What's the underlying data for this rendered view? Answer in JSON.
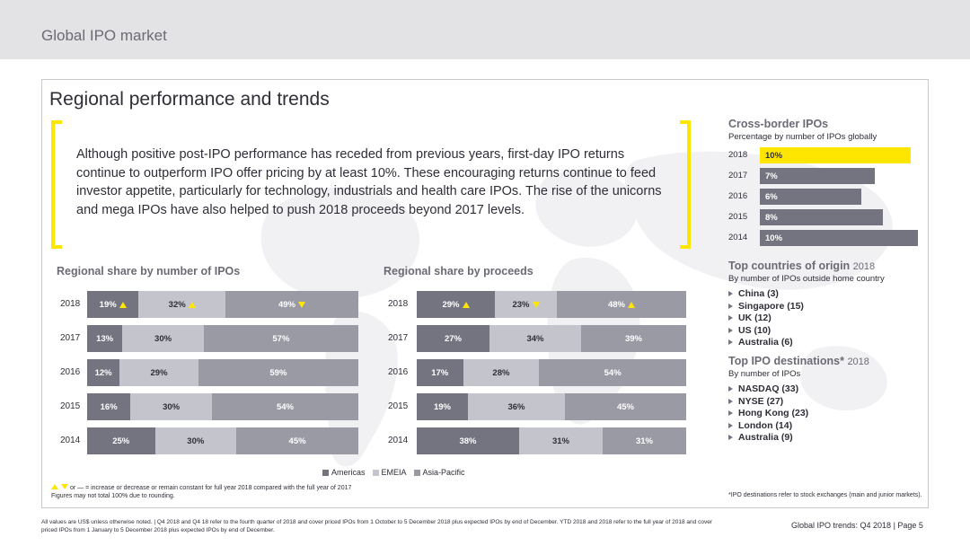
{
  "header": {
    "title": "Global IPO market"
  },
  "heading": "Regional performance and trends",
  "quote": "Although positive post-IPO performance has receded from previous years, first-day IPO returns continue to outperform IPO offer pricing by at least 10%. These encouraging returns continue to feed investor appetite, particularly for technology, industrials and health care IPOs. The rise of the unicorns and mega IPOs have also helped to push 2018 proceeds beyond 2017 levels.",
  "colors": {
    "accent": "#ffe600",
    "americas": "#747480",
    "emeia": "#c4c4cd",
    "asia_pacific": "#9a9aa5"
  },
  "chart_data": [
    {
      "type": "bar",
      "stacked": true,
      "orientation": "horizontal",
      "title": "Regional share by number of IPOs",
      "categories": [
        "2018",
        "2017",
        "2016",
        "2015",
        "2014"
      ],
      "series": [
        {
          "name": "Americas",
          "values": [
            19,
            13,
            12,
            16,
            25
          ],
          "labels": [
            "19%",
            "13%",
            "12%",
            "16%",
            "25%"
          ],
          "markers": [
            "up",
            "",
            "",
            "",
            ""
          ]
        },
        {
          "name": "EMEIA",
          "values": [
            32,
            30,
            29,
            30,
            30
          ],
          "labels": [
            "32%",
            "30%",
            "29%",
            "30%",
            "30%"
          ],
          "markers": [
            "up",
            "",
            "",
            "",
            ""
          ]
        },
        {
          "name": "Asia-Pacific",
          "values": [
            49,
            57,
            59,
            54,
            45
          ],
          "labels": [
            "49%",
            "57%",
            "59%",
            "54%",
            "45%"
          ],
          "markers": [
            "down",
            "",
            "",
            "",
            ""
          ]
        }
      ]
    },
    {
      "type": "bar",
      "stacked": true,
      "orientation": "horizontal",
      "title": "Regional share by proceeds",
      "categories": [
        "2018",
        "2017",
        "2016",
        "2015",
        "2014"
      ],
      "series": [
        {
          "name": "Americas",
          "values": [
            29,
            27,
            17,
            19,
            38
          ],
          "labels": [
            "29%",
            "27%",
            "17%",
            "19%",
            "38%"
          ],
          "markers": [
            "up",
            "",
            "",
            "",
            ""
          ]
        },
        {
          "name": "EMEIA",
          "values": [
            23,
            34,
            28,
            36,
            31
          ],
          "labels": [
            "23%",
            "34%",
            "28%",
            "36%",
            "31%"
          ],
          "markers": [
            "down",
            "",
            "",
            "",
            ""
          ]
        },
        {
          "name": "Asia-Pacific",
          "values": [
            48,
            39,
            54,
            45,
            31
          ],
          "labels": [
            "48%",
            "39%",
            "54%",
            "45%",
            "31%"
          ],
          "markers": [
            "up",
            "",
            "",
            "",
            ""
          ]
        }
      ]
    },
    {
      "type": "bar",
      "orientation": "horizontal",
      "title": "Cross-border IPOs",
      "subtitle": "Percentage by number of IPOs globally",
      "categories": [
        "2018",
        "2017",
        "2016",
        "2015",
        "2014"
      ],
      "values": [
        10,
        7,
        6,
        8,
        10
      ],
      "labels": [
        "10%",
        "7%",
        "6%",
        "8%",
        "10%"
      ],
      "highlight_index": 0
    }
  ],
  "legend": {
    "americas": "Americas",
    "emeia": "EMEIA",
    "asia_pacific": "Asia-Pacific"
  },
  "notes": {
    "change_line": "or — = increase or decrease or remain constant for full year 2018 compared with the full year of 2017",
    "rounding": "Figures may not total 100% due to rounding.",
    "destinations": "*IPO destinations refer to stock exchanges (main and junior markets)."
  },
  "origin": {
    "title": "Top countries of origin",
    "year": "2018",
    "subtitle": "By number of IPOs outside home country",
    "items": [
      "China (3)",
      "Singapore (15)",
      "UK (12)",
      "US (10)",
      "Australia (6)"
    ]
  },
  "destinations": {
    "title": "Top IPO destinations*",
    "year": "2018",
    "subtitle": "By number of IPOs",
    "items": [
      "NASDAQ (33)",
      "NYSE (27)",
      "Hong Kong (23)",
      "London (14)",
      "Australia (9)"
    ]
  },
  "footer": {
    "note": "All values are US$ unless otherwise noted. | Q4 2018 and Q4 18 refer to the fourth quarter of 2018 and cover priced IPOs from 1 October to 5 December 2018 plus expected IPOs by end of December. YTD 2018 and 2018 refer to the full year of 2018 and cover priced IPOs from 1 January to 5 December 2018 plus expected IPOs by end of December.",
    "page": "Global IPO trends: Q4 2018 | Page 5"
  }
}
